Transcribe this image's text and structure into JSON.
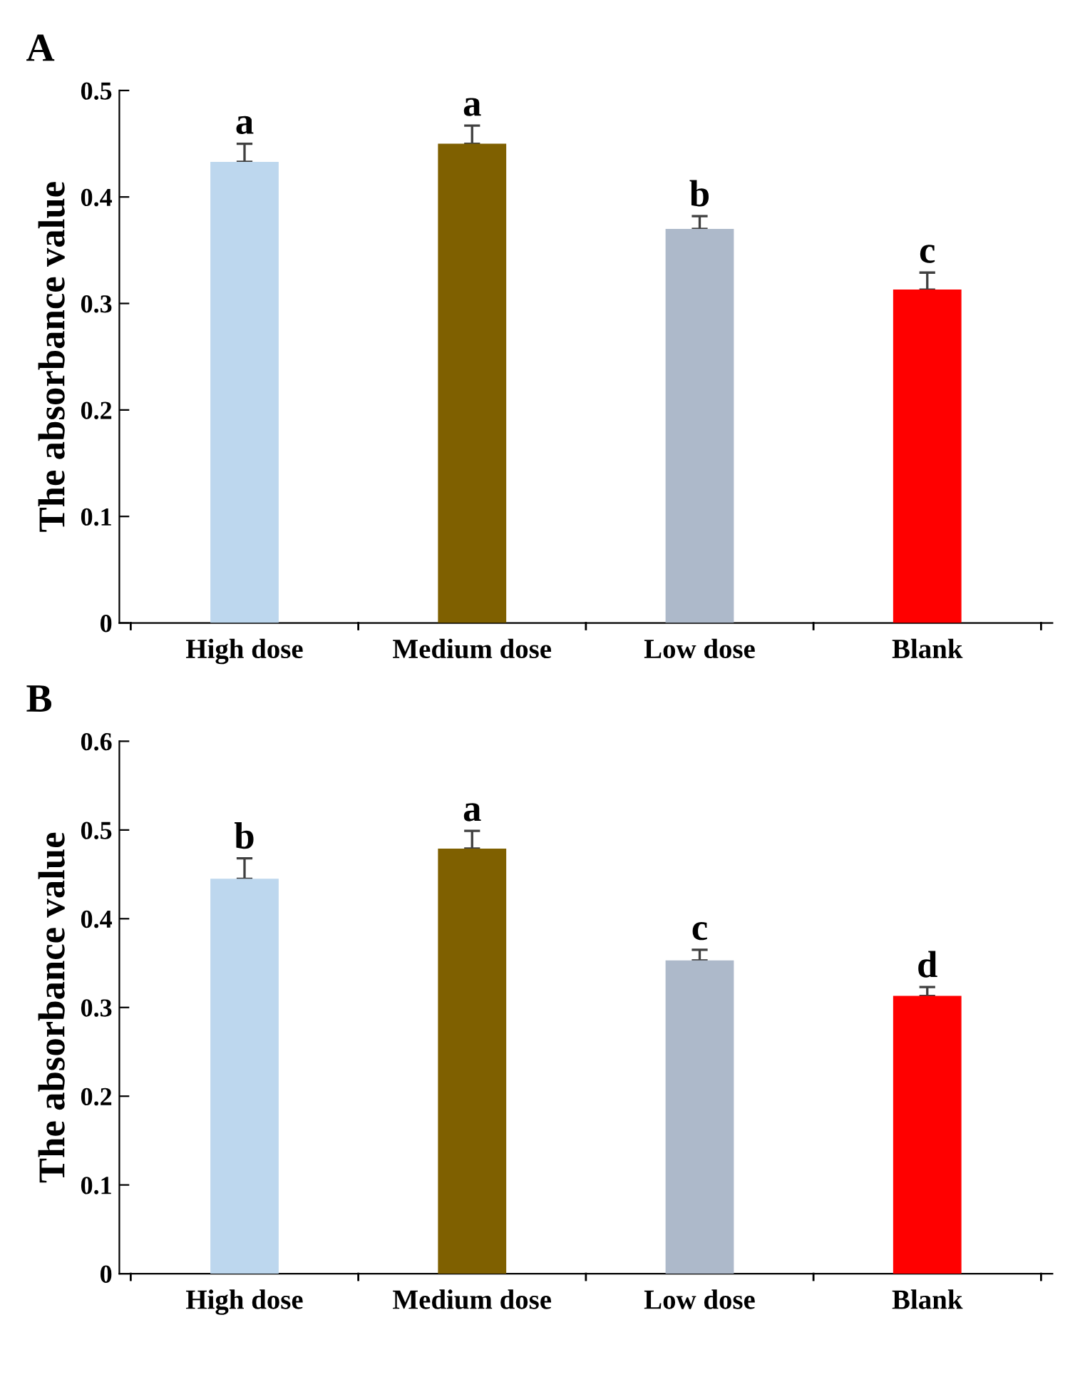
{
  "chart_data": [
    {
      "type": "bar",
      "title": "A",
      "ylabel": "The absorbance value",
      "categories": [
        "High dose",
        "Medium dose",
        "Low dose",
        "Blank"
      ],
      "values": [
        0.433,
        0.45,
        0.37,
        0.313
      ],
      "errors": [
        [
          0.433,
          0.45
        ],
        [
          0.45,
          0.467
        ],
        [
          0.37,
          0.382
        ],
        [
          0.313,
          0.329
        ]
      ],
      "colors": [
        "#bdd7ee",
        "#7f6000",
        "#adb9ca",
        "#ff0000"
      ],
      "ylim": [
        0,
        0.5
      ],
      "yticks": [
        0,
        0.1,
        0.2,
        0.3,
        0.4,
        0.5
      ],
      "annotations": [
        "a",
        "a",
        "b",
        "c"
      ]
    },
    {
      "type": "bar",
      "title": "B",
      "ylabel": "The absorbance value",
      "categories": [
        "High dose",
        "Medium dose",
        "Low dose",
        "Blank"
      ],
      "values": [
        0.445,
        0.479,
        0.353,
        0.313
      ],
      "errors": [
        [
          0.445,
          0.468
        ],
        [
          0.479,
          0.499
        ],
        [
          0.353,
          0.365
        ],
        [
          0.313,
          0.323
        ]
      ],
      "colors": [
        "#bdd7ee",
        "#7f6000",
        "#adb9ca",
        "#ff0000"
      ],
      "ylim": [
        0,
        0.6
      ],
      "yticks": [
        0,
        0.1,
        0.2,
        0.3,
        0.4,
        0.5,
        0.6
      ],
      "annotations": [
        "b",
        "a",
        "c",
        "d"
      ]
    }
  ]
}
